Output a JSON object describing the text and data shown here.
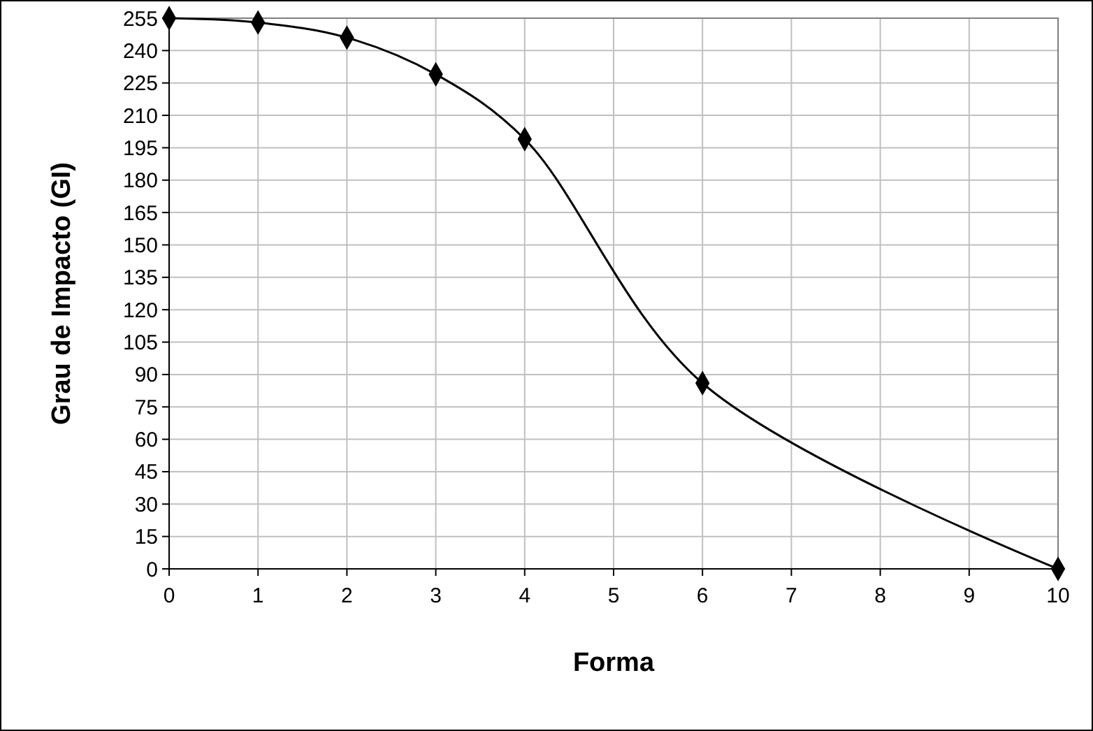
{
  "chart_data": {
    "type": "line",
    "xlabel": "Forma",
    "ylabel": "Grau de Impacto (GI)",
    "x": [
      0,
      1,
      2,
      3,
      4,
      6,
      10
    ],
    "series": [
      {
        "color": "#000000",
        "values": [
          255,
          253,
          246,
          229,
          199,
          86,
          0
        ]
      }
    ],
    "xlim": [
      0,
      10
    ],
    "xticks": [
      0,
      1,
      2,
      3,
      4,
      5,
      6,
      7,
      8,
      9,
      10
    ],
    "ylim": [
      0,
      255
    ],
    "yticks": [
      0,
      15,
      30,
      45,
      60,
      75,
      90,
      105,
      120,
      135,
      150,
      165,
      180,
      195,
      210,
      225,
      240,
      255
    ],
    "grid": true,
    "marker": "diamond",
    "line_style": "solid"
  }
}
